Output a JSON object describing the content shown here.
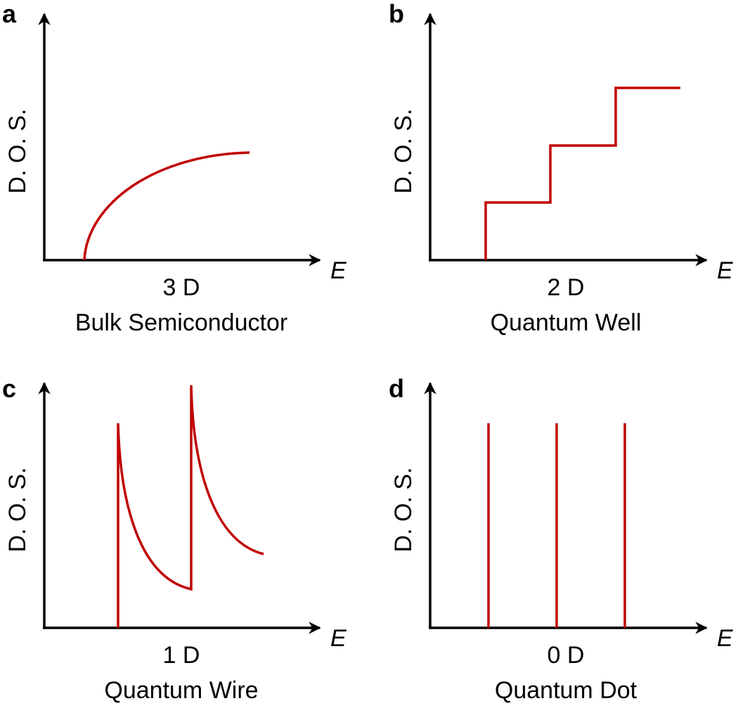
{
  "colors": {
    "curve": "#c00000",
    "axis": "#000000"
  },
  "panels": [
    {
      "letter": "a",
      "ylabel": "D. O. S.",
      "xlabel": "E",
      "dim": "3 D",
      "name": "Bulk Semiconductor"
    },
    {
      "letter": "b",
      "ylabel": "D. O. S.",
      "xlabel": "E",
      "dim": "2 D",
      "name": "Quantum Well"
    },
    {
      "letter": "c",
      "ylabel": "D. O. S.",
      "xlabel": "E",
      "dim": "1 D",
      "name": "Quantum Wire"
    },
    {
      "letter": "d",
      "ylabel": "D. O. S.",
      "xlabel": "E",
      "dim": "0 D",
      "name": "Quantum Dot"
    }
  ]
}
